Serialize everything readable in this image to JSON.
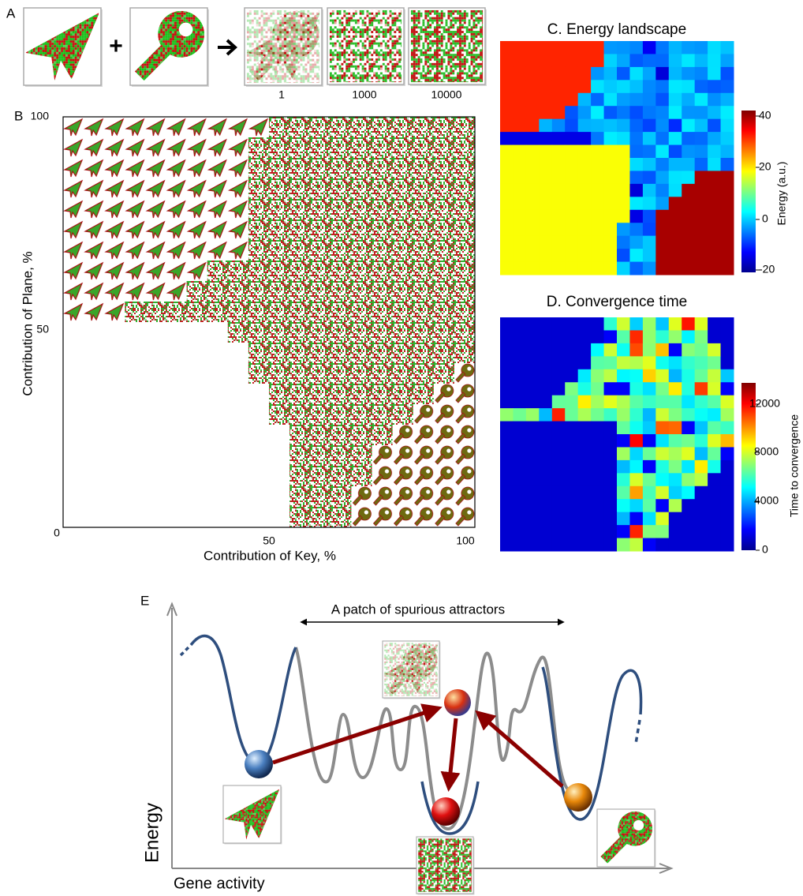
{
  "panel_a": {
    "label": "A",
    "plus": "+",
    "captions": [
      "1",
      "1000",
      "10000"
    ]
  },
  "panel_b": {
    "label": "B",
    "x_label": "Contribution of Key, %",
    "y_label": "Contribution of Plane, %",
    "origin": "0",
    "x_ticks": [
      "50",
      "100"
    ],
    "y_ticks": [
      "100",
      "50"
    ]
  },
  "panel_c": {
    "title": "C. Energy landscape",
    "colorbar_label": "Energy (a.u.)",
    "colorbar_ticks": [
      "40",
      "20",
      "0",
      "-20"
    ]
  },
  "panel_d": {
    "title": "D. Convergence time",
    "colorbar_label": "Time to convergence",
    "colorbar_ticks": [
      "12000",
      "8000",
      "4000",
      "0"
    ]
  },
  "panel_e": {
    "label": "E",
    "annotation": "A patch of spurious attractors",
    "y_label": "Energy",
    "x_label": "Gene activity"
  }
}
